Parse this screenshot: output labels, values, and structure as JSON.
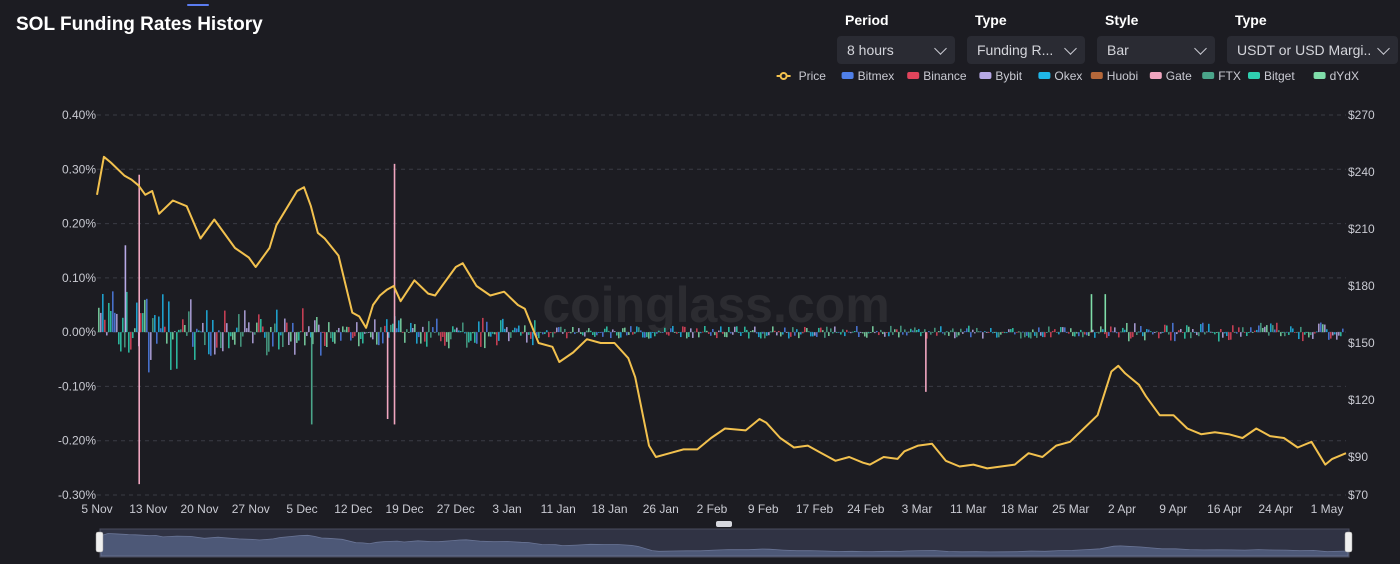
{
  "page": {
    "title": "SOL Funding Rates History"
  },
  "controls": [
    {
      "label": "Period",
      "value": "8 hours"
    },
    {
      "label": "Type",
      "value": "Funding R..."
    },
    {
      "label": "Style",
      "value": "Bar"
    },
    {
      "label": "Type",
      "value": "USDT or USD Margi..."
    }
  ],
  "watermark": "coinglass.com",
  "colors": {
    "Price": "#f2c14e",
    "Bitmex": "#4f7fe8",
    "Binance": "#e0445c",
    "Bybit": "#b7a9e6",
    "Okex": "#1fb6e8",
    "Huobi": "#b5683a",
    "Gate": "#f0a6c0",
    "FTX": "#4aa58a",
    "Bitget": "#2fcfb0",
    "dYdX": "#7fdda9"
  },
  "chart_data": {
    "type": "bar",
    "title": "SOL Funding Rates History",
    "legend_position": "top-right",
    "legend": [
      "Price",
      "Bitmex",
      "Binance",
      "Bybit",
      "Okex",
      "Huobi",
      "Gate",
      "FTX",
      "Bitget",
      "dYdX"
    ],
    "x_tick_labels": [
      "5 Nov",
      "13 Nov",
      "20 Nov",
      "27 Nov",
      "5 Dec",
      "12 Dec",
      "19 Dec",
      "27 Dec",
      "3 Jan",
      "11 Jan",
      "18 Jan",
      "26 Jan",
      "2 Feb",
      "9 Feb",
      "17 Feb",
      "24 Feb",
      "3 Mar",
      "11 Mar",
      "18 Mar",
      "25 Mar",
      "2 Apr",
      "9 Apr",
      "16 Apr",
      "24 Apr",
      "1 May"
    ],
    "x_range": [
      "2021-11-05",
      "2022-05-05"
    ],
    "y_left": {
      "ticks": [
        "0.40%",
        "0.30%",
        "0.20%",
        "0.10%",
        "0.00%",
        "-0.10%",
        "-0.20%",
        "-0.30%"
      ],
      "range": [
        -0.3,
        0.4
      ],
      "unit": "%"
    },
    "y_right": {
      "ticks": [
        "$270",
        "$240",
        "$210",
        "$180",
        "$150",
        "$120",
        "$90",
        "$70"
      ],
      "range": [
        70,
        270
      ]
    },
    "grid": true,
    "price_series": {
      "name": "Price",
      "x": [
        "2021-11-05",
        "2021-11-06",
        "2021-11-07",
        "2021-11-09",
        "2021-11-10",
        "2021-11-11",
        "2021-11-12",
        "2021-11-13",
        "2021-11-14",
        "2021-11-16",
        "2021-11-18",
        "2021-11-20",
        "2021-11-22",
        "2021-11-23",
        "2021-11-25",
        "2021-11-27",
        "2021-11-28",
        "2021-11-30",
        "2021-12-01",
        "2021-12-02",
        "2021-12-04",
        "2021-12-05",
        "2021-12-06",
        "2021-12-07",
        "2021-12-08",
        "2021-12-10",
        "2021-12-12",
        "2021-12-13",
        "2021-12-14",
        "2021-12-15",
        "2021-12-16",
        "2021-12-17",
        "2021-12-18",
        "2021-12-19",
        "2021-12-21",
        "2021-12-23",
        "2021-12-24",
        "2021-12-26",
        "2021-12-27",
        "2021-12-28",
        "2021-12-30",
        "2022-01-01",
        "2022-01-03",
        "2022-01-05",
        "2022-01-06",
        "2022-01-08",
        "2022-01-10",
        "2022-01-11",
        "2022-01-13",
        "2022-01-15",
        "2022-01-17",
        "2022-01-19",
        "2022-01-21",
        "2022-01-22",
        "2022-01-24",
        "2022-01-25",
        "2022-01-27",
        "2022-01-29",
        "2022-01-31",
        "2022-02-02",
        "2022-02-04",
        "2022-02-07",
        "2022-02-09",
        "2022-02-10",
        "2022-02-12",
        "2022-02-14",
        "2022-02-16",
        "2022-02-18",
        "2022-02-20",
        "2022-02-22",
        "2022-02-24",
        "2022-02-25",
        "2022-02-27",
        "2022-03-01",
        "2022-03-02",
        "2022-03-04",
        "2022-03-06",
        "2022-03-08",
        "2022-03-10",
        "2022-03-12",
        "2022-03-14",
        "2022-03-16",
        "2022-03-18",
        "2022-03-20",
        "2022-03-22",
        "2022-03-24",
        "2022-03-26",
        "2022-03-28",
        "2022-03-30",
        "2022-04-01",
        "2022-04-02",
        "2022-04-03",
        "2022-04-05",
        "2022-04-06",
        "2022-04-08",
        "2022-04-10",
        "2022-04-12",
        "2022-04-14",
        "2022-04-16",
        "2022-04-18",
        "2022-04-20",
        "2022-04-22",
        "2022-04-24",
        "2022-04-26",
        "2022-04-28",
        "2022-04-30",
        "2022-05-02",
        "2022-05-03",
        "2022-05-05"
      ],
      "y": [
        228,
        248,
        245,
        238,
        236,
        233,
        228,
        230,
        218,
        225,
        222,
        205,
        215,
        210,
        200,
        195,
        190,
        200,
        212,
        218,
        230,
        232,
        222,
        208,
        205,
        196,
        166,
        164,
        158,
        170,
        175,
        178,
        180,
        172,
        183,
        176,
        175,
        185,
        190,
        192,
        180,
        175,
        177,
        170,
        168,
        150,
        148,
        140,
        145,
        152,
        150,
        150,
        142,
        132,
        96,
        90,
        92,
        94,
        94,
        100,
        105,
        104,
        110,
        108,
        100,
        95,
        96,
        92,
        88,
        90,
        87,
        86,
        90,
        89,
        93,
        96,
        97,
        88,
        85,
        86,
        84,
        85,
        86,
        92,
        90,
        96,
        98,
        105,
        112,
        135,
        138,
        134,
        128,
        122,
        112,
        112,
        105,
        102,
        103,
        102,
        100,
        105,
        101,
        100,
        95,
        98,
        86,
        89,
        92
      ]
    },
    "bars_summary": "Per-interval funding-rate bars per exchange (%), mostly between -0.05% and 0.05%",
    "bar_spikes": [
      {
        "exchange": "Gate",
        "date": "2021-11-11",
        "value": -0.28
      },
      {
        "exchange": "Gate",
        "date": "2021-11-11",
        "value": 0.29
      },
      {
        "exchange": "Bybit",
        "date": "2021-11-09",
        "value": 0.16
      },
      {
        "exchange": "Gate",
        "date": "2021-12-18",
        "value": 0.31
      },
      {
        "exchange": "Gate",
        "date": "2021-12-18",
        "value": -0.17
      },
      {
        "exchange": "Gate",
        "date": "2021-12-17",
        "value": -0.16
      },
      {
        "exchange": "FTX",
        "date": "2021-12-06",
        "value": -0.17
      },
      {
        "exchange": "Gate",
        "date": "2022-03-05",
        "value": -0.11
      },
      {
        "exchange": "dYdX",
        "date": "2022-03-29",
        "value": 0.07
      },
      {
        "exchange": "dYdX",
        "date": "2022-03-31",
        "value": 0.07
      }
    ]
  }
}
